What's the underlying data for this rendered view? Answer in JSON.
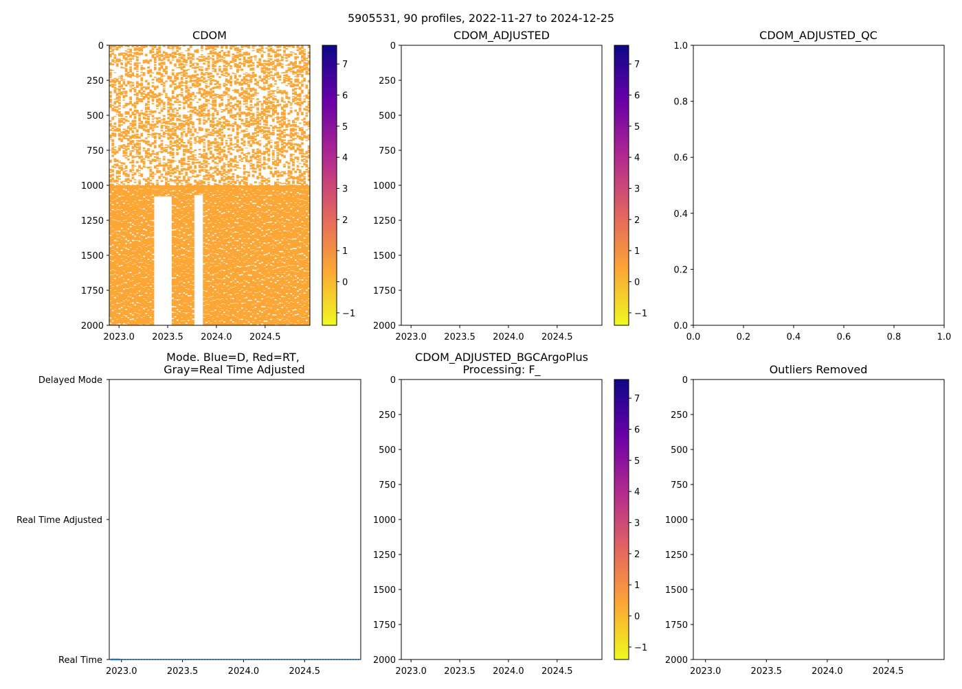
{
  "suptitle": "5905531, 90 profiles, 2022-11-27 to 2024-12-25",
  "colors": {
    "data_fill": "#fca636",
    "plasma_stops": [
      "#0d0887",
      "#6a00a8",
      "#b12a90",
      "#e16462",
      "#fca636",
      "#f0f921"
    ],
    "mode_line": "#1f77b4"
  },
  "colorbar": {
    "vmin": -1.4,
    "vmax": 7.6,
    "ticks": [
      "-1",
      "0",
      "1",
      "2",
      "3",
      "4",
      "5",
      "6",
      "7"
    ]
  },
  "chart_data": [
    {
      "name": "cdom",
      "type": "heatmap",
      "title": "CDOM",
      "xlim": [
        2022.9,
        2024.96
      ],
      "ylim": [
        2000,
        0
      ],
      "xticks": [
        "2023.0",
        "2023.5",
        "2024.0",
        "2024.5"
      ],
      "yticks": [
        "0",
        "250",
        "500",
        "750",
        "1000",
        "1250",
        "1500",
        "1750",
        "2000"
      ],
      "value_range": [
        -0.1,
        0.3
      ],
      "gaps": [
        {
          "x_start": 2023.35,
          "x_end": 2023.53,
          "top_depth": 1080,
          "bottom_depth": 2000
        },
        {
          "x_start": 2023.77,
          "x_end": 2023.85,
          "top_depth": 1070,
          "bottom_depth": 2000
        }
      ],
      "sparse_depth_range": [
        0,
        1000
      ],
      "colorbar": true
    },
    {
      "name": "cdom-adjusted",
      "type": "heatmap",
      "title": "CDOM_ADJUSTED",
      "xlim": [
        2022.9,
        2024.96
      ],
      "ylim": [
        2000,
        0
      ],
      "xticks": [
        "2023.0",
        "2023.5",
        "2024.0",
        "2024.5"
      ],
      "yticks": [
        "0",
        "250",
        "500",
        "750",
        "1000",
        "1250",
        "1500",
        "1750",
        "2000"
      ],
      "values": [],
      "colorbar": true
    },
    {
      "name": "cdom-adjusted-qc",
      "type": "scatter",
      "title": "CDOM_ADJUSTED_QC",
      "xlim": [
        0,
        1
      ],
      "ylim": [
        0,
        1
      ],
      "xticks": [
        "0.0",
        "0.2",
        "0.4",
        "0.6",
        "0.8",
        "1.0"
      ],
      "yticks": [
        "0.0",
        "0.2",
        "0.4",
        "0.6",
        "0.8",
        "1.0"
      ],
      "values": [],
      "colorbar": false
    },
    {
      "name": "mode",
      "type": "line",
      "title_line1": "Mode. Blue=D, Red=RT,",
      "title_line2": "Gray=Real Time Adjusted",
      "xlim": [
        2022.9,
        2024.96
      ],
      "xticks": [
        "2023.0",
        "2023.5",
        "2024.0",
        "2024.5"
      ],
      "ycategories": [
        "Delayed Mode",
        "Real Time Adjusted",
        "Real Time"
      ],
      "profiles": 90,
      "x_start": 2022.91,
      "x_end": 2024.98,
      "mode_value": "Real Time"
    },
    {
      "name": "bgcargoplus",
      "type": "heatmap",
      "title_line1": "CDOM_ADJUSTED_BGCArgoPlus",
      "title_line2": "Processing: F_",
      "xlim": [
        2022.9,
        2024.96
      ],
      "ylim": [
        2000,
        0
      ],
      "xticks": [
        "2023.0",
        "2023.5",
        "2024.0",
        "2024.5"
      ],
      "yticks": [
        "0",
        "250",
        "500",
        "750",
        "1000",
        "1250",
        "1500",
        "1750",
        "2000"
      ],
      "values": [],
      "colorbar": true
    },
    {
      "name": "outliers-removed",
      "type": "heatmap",
      "title": "Outliers Removed",
      "xlim": [
        2022.9,
        2024.96
      ],
      "ylim": [
        2000,
        0
      ],
      "xticks": [
        "2023.0",
        "2023.5",
        "2024.0",
        "2024.5"
      ],
      "yticks": [
        "0",
        "250",
        "500",
        "750",
        "1000",
        "1250",
        "1500",
        "1750",
        "2000"
      ],
      "values": [],
      "colorbar": false
    }
  ]
}
